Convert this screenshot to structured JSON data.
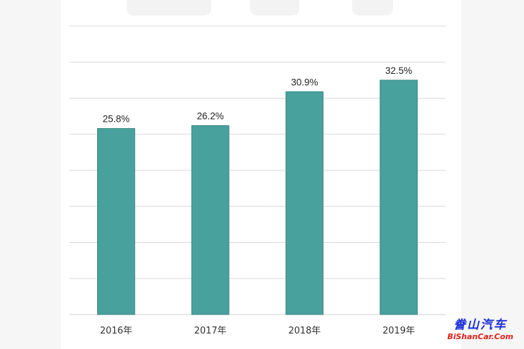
{
  "chart_data": {
    "type": "bar",
    "categories": [
      "2016年",
      "2017年",
      "2018年",
      "2019年"
    ],
    "values": [
      25.8,
      26.2,
      30.9,
      32.5
    ],
    "data_labels": [
      "25.8%",
      "26.2%",
      "30.9%",
      "32.5%"
    ],
    "ylim": [
      0,
      40
    ],
    "grid": true,
    "colors": {
      "bar": "#48a19c",
      "grid": "#d9d9d9",
      "label": "#222222"
    }
  },
  "watermark": {
    "logo_text": "誊山汽车",
    "url": "BiShanCar.Com",
    "colors": {
      "logo": "#1b2fd6",
      "url": "#e0221b"
    }
  }
}
